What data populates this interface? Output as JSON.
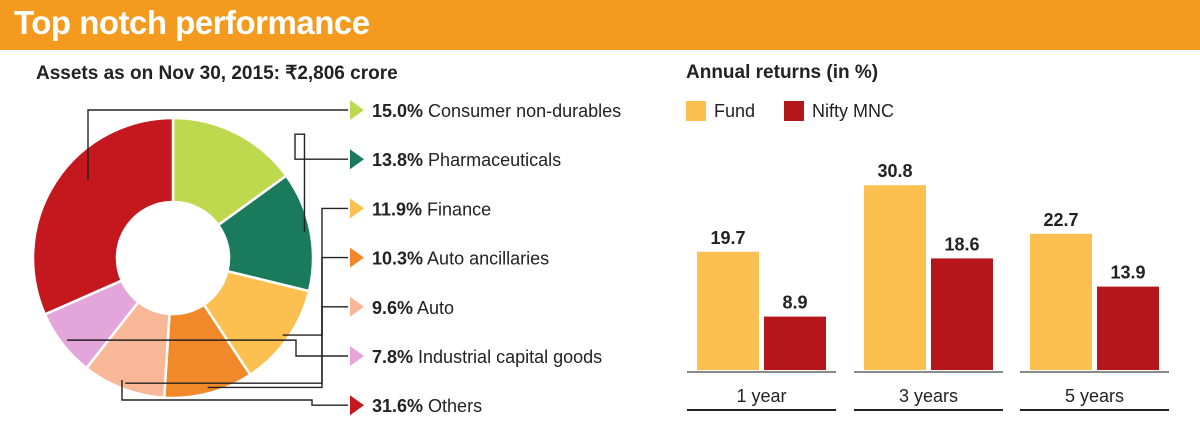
{
  "banner": {
    "title": "Top notch performance"
  },
  "chart_data": [
    {
      "type": "pie",
      "title": "Assets as on Nov 30, 2015: ₹2,806 crore",
      "slices": [
        {
          "label": "Consumer non-durables",
          "value": 15.0,
          "display": "15.0%",
          "color": "#bfd94f"
        },
        {
          "label": "Pharmaceuticals",
          "value": 13.8,
          "display": "13.8%",
          "color": "#1a7a5c"
        },
        {
          "label": "Finance",
          "value": 11.9,
          "display": "11.9%",
          "color": "#fbc04f"
        },
        {
          "label": "Auto ancillaries",
          "value": 10.3,
          "display": "10.3%",
          "color": "#f1892b"
        },
        {
          "label": "Auto",
          "value": 9.6,
          "display": "9.6%",
          "color": "#f8b796"
        },
        {
          "label": "Industrial capital goods",
          "value": 7.8,
          "display": "7.8%",
          "color": "#e4a5da"
        },
        {
          "label": "Others",
          "value": 31.6,
          "display": "31.6%",
          "color": "#c4181e"
        }
      ]
    },
    {
      "type": "bar",
      "title": "Annual returns (in %)",
      "categories": [
        "1 year",
        "3 years",
        "5 years"
      ],
      "series": [
        {
          "name": "Fund",
          "values": [
            19.7,
            30.8,
            22.7
          ],
          "color": "#fbc04f"
        },
        {
          "name": "Nifty MNC",
          "values": [
            8.9,
            18.6,
            13.9
          ],
          "color": "#b5161c"
        }
      ],
      "ylim": [
        0,
        36
      ]
    }
  ]
}
